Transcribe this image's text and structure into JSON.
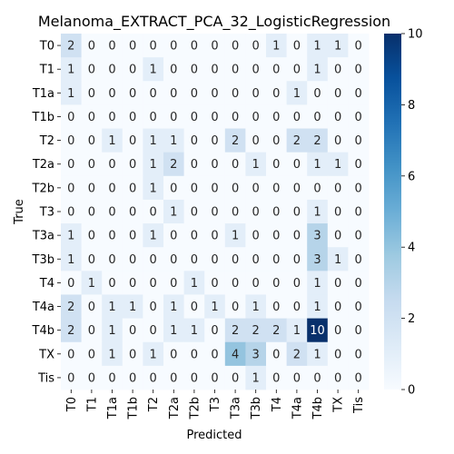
{
  "chart_data": {
    "type": "heatmap",
    "title": "Melanoma_EXTRACT_PCA_32_LogisticRegression",
    "xlabel": "Predicted",
    "ylabel": "True",
    "x_categories": [
      "T0",
      "T1",
      "T1a",
      "T1b",
      "T2",
      "T2a",
      "T2b",
      "T3",
      "T3a",
      "T3b",
      "T4",
      "T4a",
      "T4b",
      "TX",
      "Tis"
    ],
    "y_categories": [
      "T0",
      "T1",
      "T1a",
      "T1b",
      "T2",
      "T2a",
      "T2b",
      "T3",
      "T3a",
      "T3b",
      "T4",
      "T4a",
      "T4b",
      "TX",
      "Tis"
    ],
    "values": [
      [
        2,
        0,
        0,
        0,
        0,
        0,
        0,
        0,
        0,
        0,
        1,
        0,
        1,
        1,
        0
      ],
      [
        1,
        0,
        0,
        0,
        1,
        0,
        0,
        0,
        0,
        0,
        0,
        0,
        1,
        0,
        0
      ],
      [
        1,
        0,
        0,
        0,
        0,
        0,
        0,
        0,
        0,
        0,
        0,
        1,
        0,
        0,
        0
      ],
      [
        0,
        0,
        0,
        0,
        0,
        0,
        0,
        0,
        0,
        0,
        0,
        0,
        0,
        0,
        0
      ],
      [
        0,
        0,
        1,
        0,
        1,
        1,
        0,
        0,
        2,
        0,
        0,
        2,
        2,
        0,
        0
      ],
      [
        0,
        0,
        0,
        0,
        1,
        2,
        0,
        0,
        0,
        1,
        0,
        0,
        1,
        1,
        0
      ],
      [
        0,
        0,
        0,
        0,
        1,
        0,
        0,
        0,
        0,
        0,
        0,
        0,
        0,
        0,
        0
      ],
      [
        0,
        0,
        0,
        0,
        0,
        1,
        0,
        0,
        0,
        0,
        0,
        0,
        1,
        0,
        0
      ],
      [
        1,
        0,
        0,
        0,
        1,
        0,
        0,
        0,
        1,
        0,
        0,
        0,
        3,
        0,
        0
      ],
      [
        1,
        0,
        0,
        0,
        0,
        0,
        0,
        0,
        0,
        0,
        0,
        0,
        3,
        1,
        0
      ],
      [
        0,
        1,
        0,
        0,
        0,
        0,
        1,
        0,
        0,
        0,
        0,
        0,
        1,
        0,
        0
      ],
      [
        2,
        0,
        1,
        1,
        0,
        1,
        0,
        1,
        0,
        1,
        0,
        0,
        1,
        0,
        0
      ],
      [
        2,
        0,
        1,
        0,
        0,
        1,
        1,
        0,
        2,
        2,
        2,
        1,
        10,
        0,
        0
      ],
      [
        0,
        0,
        1,
        0,
        1,
        0,
        0,
        0,
        4,
        3,
        0,
        2,
        1,
        0,
        0
      ],
      [
        0,
        0,
        0,
        0,
        0,
        0,
        0,
        0,
        0,
        1,
        0,
        0,
        0,
        0,
        0
      ]
    ],
    "colorbar": {
      "min": 0,
      "max": 10,
      "ticks": [
        0,
        2,
        4,
        6,
        8,
        10
      ],
      "colormap": "Blues",
      "low_color": "#f7fbff",
      "high_color": "#08306b"
    }
  }
}
